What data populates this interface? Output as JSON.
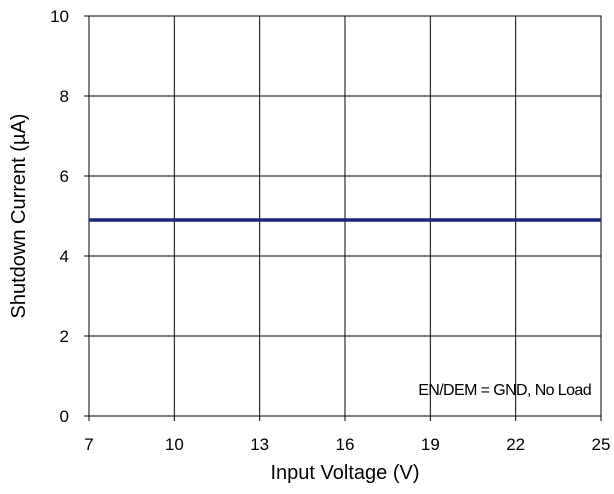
{
  "chart_data": {
    "type": "line",
    "title": "",
    "xlabel": "Input Voltage (V)",
    "ylabel": "Shutdown Current (µA)",
    "xlim": [
      7,
      25
    ],
    "ylim": [
      0,
      10
    ],
    "x_ticks": [
      7,
      10,
      13,
      16,
      19,
      22,
      25
    ],
    "y_ticks": [
      0,
      2,
      4,
      6,
      8,
      10
    ],
    "grid": true,
    "legend": "none",
    "annotation": "EN/DEM = GND, No Load",
    "series": [
      {
        "color": "#1a237e",
        "x": [
          7,
          10,
          13,
          16,
          19,
          22,
          25
        ],
        "y": [
          4.9,
          4.9,
          4.9,
          4.9,
          4.9,
          4.9,
          4.9
        ]
      }
    ]
  }
}
